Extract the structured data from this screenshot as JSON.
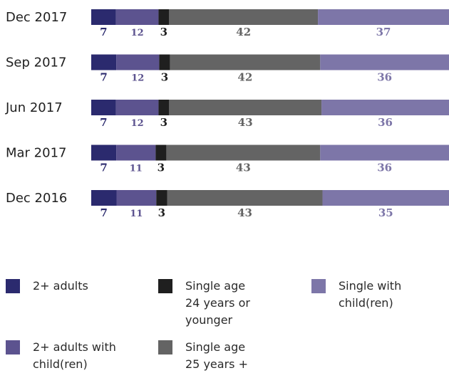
{
  "chart_data": {
    "type": "bar",
    "orientation": "horizontal",
    "stacked": true,
    "percent": true,
    "categories": [
      "Dec 2017",
      "Sep 2017",
      "Jun 2017",
      "Mar 2017",
      "Dec 2016"
    ],
    "series": [
      {
        "name": "2+ adults",
        "color": "#2b2a6e",
        "label_color": "#2b2a6e",
        "values": [
          7,
          7,
          7,
          7,
          7
        ]
      },
      {
        "name": "2+ adults with child(ren)",
        "color": "#5c538f",
        "label_color": "#5c538f",
        "values": [
          12,
          12,
          12,
          11,
          11
        ]
      },
      {
        "name": "Single age 24 years or younger",
        "color": "#1f1f1f",
        "label_color": "#1f1f1f",
        "values": [
          3,
          3,
          3,
          3,
          3
        ]
      },
      {
        "name": "Single age 25 years +",
        "color": "#646464",
        "label_color": "#646464",
        "values": [
          42,
          42,
          43,
          43,
          43
        ]
      },
      {
        "name": "Single with child(ren)",
        "color": "#7d76a8",
        "label_color": "#7d76a8",
        "values": [
          37,
          36,
          36,
          36,
          35
        ]
      }
    ],
    "legend": {
      "placement": "bottom",
      "items": [
        {
          "label": "2+ adults",
          "color": "#2b2a6e"
        },
        {
          "label": "Single age\n24 years or\nyounger",
          "color": "#1f1f1f"
        },
        {
          "label": "Single with\nchild(ren)",
          "color": "#7d76a8"
        },
        {
          "label": "2+ adults with\nchild(ren)",
          "color": "#5c538f"
        },
        {
          "label": "Single age\n25 years +",
          "color": "#646464"
        }
      ]
    },
    "grid": false
  }
}
